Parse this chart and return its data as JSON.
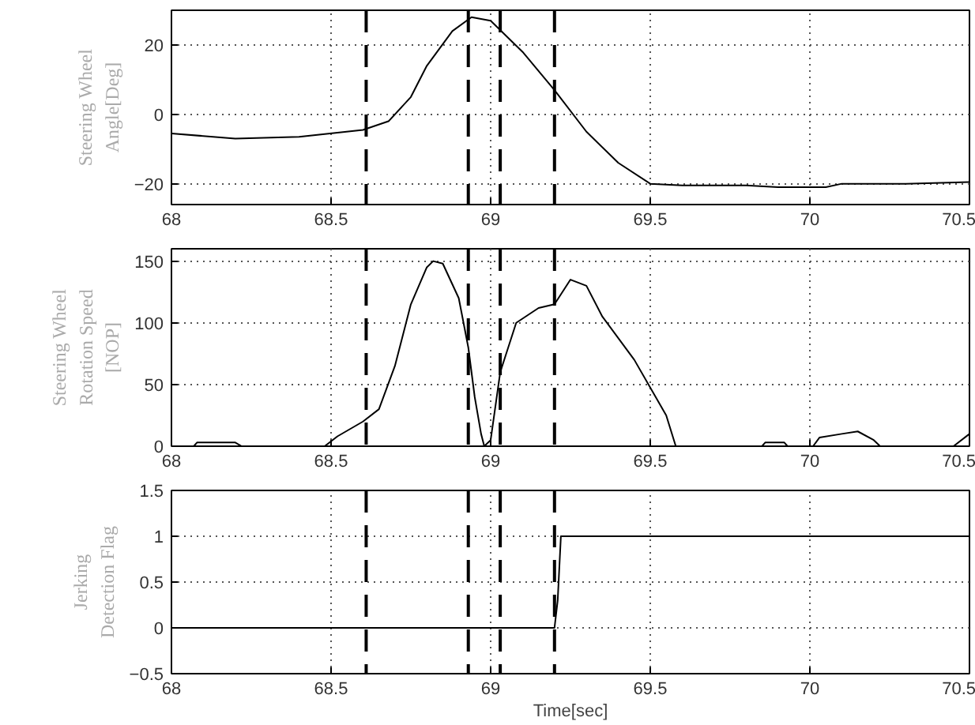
{
  "chart_data": [
    {
      "type": "line",
      "ylabel": "Steering Wheel Angle[Deg]",
      "xlim": [
        68,
        70.5
      ],
      "xticks": [
        68,
        68.5,
        69,
        69.5,
        70,
        70.5
      ],
      "ylim": [
        -26,
        30
      ],
      "yticks": [
        -20,
        0,
        20
      ],
      "grid": true,
      "line_style": "solid",
      "series": [
        {
          "color": "#000000",
          "x": [
            68,
            68.2,
            68.4,
            68.6,
            68.68,
            68.75,
            68.8,
            68.88,
            68.94,
            69.0,
            69.1,
            69.2,
            69.3,
            69.4,
            69.5,
            69.6,
            69.8,
            69.9,
            70.05,
            70.1,
            70.3,
            70.5
          ],
          "values": [
            -5.5,
            -7,
            -6.5,
            -4.5,
            -2,
            5,
            14,
            24,
            28,
            27,
            18,
            7,
            -5,
            -14,
            -20,
            -20.5,
            -20.5,
            -21,
            -21,
            -20,
            -20,
            -19.5
          ]
        }
      ],
      "ref_lines": [
        {
          "axis": "x",
          "value": 68.61,
          "color": "#000000",
          "line_style": "dashed"
        },
        {
          "axis": "x",
          "value": 68.93,
          "color": "#000000",
          "line_style": "dashed"
        },
        {
          "axis": "x",
          "value": 69.03,
          "color": "#000000",
          "line_style": "dashed"
        },
        {
          "axis": "x",
          "value": 69.2,
          "color": "#000000",
          "line_style": "dashed"
        }
      ]
    },
    {
      "type": "line",
      "ylabel": "Steering Wheel Rotation Speed [NOP]",
      "xlim": [
        68,
        70.5
      ],
      "xticks": [
        68,
        68.5,
        69,
        69.5,
        70,
        70.5
      ],
      "ylim": [
        0,
        160
      ],
      "yticks": [
        0,
        50,
        100,
        150
      ],
      "grid": true,
      "line_style": "solid",
      "series": [
        {
          "color": "#000000",
          "x": [
            68,
            68.07,
            68.08,
            68.2,
            68.22,
            68.48,
            68.52,
            68.6,
            68.65,
            68.7,
            68.75,
            68.8,
            68.82,
            68.85,
            68.9,
            68.93,
            68.95,
            68.97,
            68.98,
            69.0,
            69.03,
            69.08,
            69.15,
            69.2,
            69.25,
            69.3,
            69.35,
            69.45,
            69.55,
            69.58,
            69.85,
            69.86,
            69.92,
            69.93,
            70.01,
            70.03,
            70.1,
            70.15,
            70.2,
            70.22,
            70.45,
            70.5
          ],
          "values": [
            0,
            0,
            3,
            3,
            0,
            0,
            8,
            20,
            30,
            65,
            115,
            145,
            150,
            148,
            120,
            80,
            40,
            10,
            0,
            5,
            60,
            100,
            112,
            115,
            135,
            130,
            105,
            70,
            25,
            0,
            0,
            3,
            3,
            0,
            0,
            7,
            10,
            12,
            5,
            0,
            0,
            10
          ]
        }
      ],
      "ref_lines": [
        {
          "axis": "x",
          "value": 68.61,
          "color": "#000000",
          "line_style": "dashed"
        },
        {
          "axis": "x",
          "value": 68.93,
          "color": "#000000",
          "line_style": "dashed"
        },
        {
          "axis": "x",
          "value": 69.03,
          "color": "#000000",
          "line_style": "dashed"
        },
        {
          "axis": "x",
          "value": 69.2,
          "color": "#000000",
          "line_style": "dashed"
        }
      ]
    },
    {
      "type": "line",
      "ylabel": "Jerking Detection Flag",
      "xlabel": "Time[sec]",
      "xlim": [
        68,
        70.5
      ],
      "xticks": [
        68,
        68.5,
        69,
        69.5,
        70,
        70.5
      ],
      "ylim": [
        -0.5,
        1.5
      ],
      "yticks": [
        -0.5,
        0,
        0.5,
        1,
        1.5
      ],
      "grid": true,
      "line_style": "solid",
      "series": [
        {
          "color": "#000000",
          "x": [
            68,
            69.2,
            69.21,
            69.22,
            70.5
          ],
          "values": [
            0,
            0,
            0.3,
            1,
            1
          ]
        }
      ],
      "ref_lines": [
        {
          "axis": "x",
          "value": 68.61,
          "color": "#000000",
          "line_style": "dashed"
        },
        {
          "axis": "x",
          "value": 68.93,
          "color": "#000000",
          "line_style": "dashed"
        },
        {
          "axis": "x",
          "value": 69.03,
          "color": "#000000",
          "line_style": "dashed"
        },
        {
          "axis": "x",
          "value": 69.2,
          "color": "#000000",
          "line_style": "dashed"
        }
      ]
    }
  ]
}
